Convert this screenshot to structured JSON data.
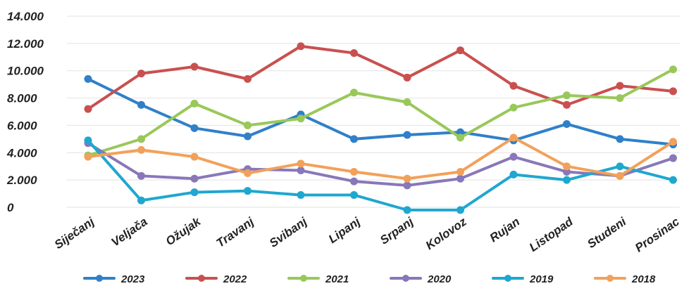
{
  "chart_data": {
    "type": "line",
    "title": "",
    "xlabel": "",
    "ylabel": "",
    "ylim": [
      0,
      14000
    ],
    "y_ticks": [
      0,
      2000,
      4000,
      6000,
      8000,
      10000,
      12000,
      14000
    ],
    "y_tick_labels": [
      "0",
      "2.000",
      "4.000",
      "6.000",
      "8.000",
      "10.000",
      "12.000",
      "14.000"
    ],
    "grid": true,
    "legend_position": "bottom",
    "categories": [
      "Siječanj",
      "Veljača",
      "Ožujak",
      "Travanj",
      "Svibanj",
      "Lipanj",
      "Srpanj",
      "Kolovoz",
      "Rujan",
      "Listopad",
      "Studeni",
      "Prosinac"
    ],
    "series": [
      {
        "name": "2023",
        "color": "#2f80c8",
        "values": [
          9400,
          7500,
          5800,
          5200,
          6800,
          5000,
          5300,
          5500,
          4900,
          6100,
          5000,
          4600
        ]
      },
      {
        "name": "2022",
        "color": "#c9504f",
        "values": [
          7200,
          9800,
          10300,
          9400,
          11800,
          11300,
          9500,
          11500,
          8900,
          7500,
          8900,
          8500
        ]
      },
      {
        "name": "2021",
        "color": "#99c85a",
        "values": [
          3800,
          5000,
          7600,
          6000,
          6500,
          8400,
          7700,
          5100,
          7300,
          8200,
          8000,
          10100
        ]
      },
      {
        "name": "2020",
        "color": "#8977b9",
        "values": [
          4700,
          2300,
          2100,
          2800,
          2700,
          1900,
          1600,
          2100,
          3700,
          2600,
          2300,
          3600
        ]
      },
      {
        "name": "2019",
        "color": "#1fa7cf",
        "values": [
          4900,
          500,
          1100,
          1200,
          900,
          900,
          -200,
          -200,
          2400,
          2000,
          3000,
          2000
        ]
      },
      {
        "name": "2018",
        "color": "#f2a15a",
        "values": [
          3700,
          4200,
          3700,
          2500,
          3200,
          2600,
          2100,
          2600,
          5100,
          3000,
          2300,
          4800
        ]
      }
    ]
  }
}
